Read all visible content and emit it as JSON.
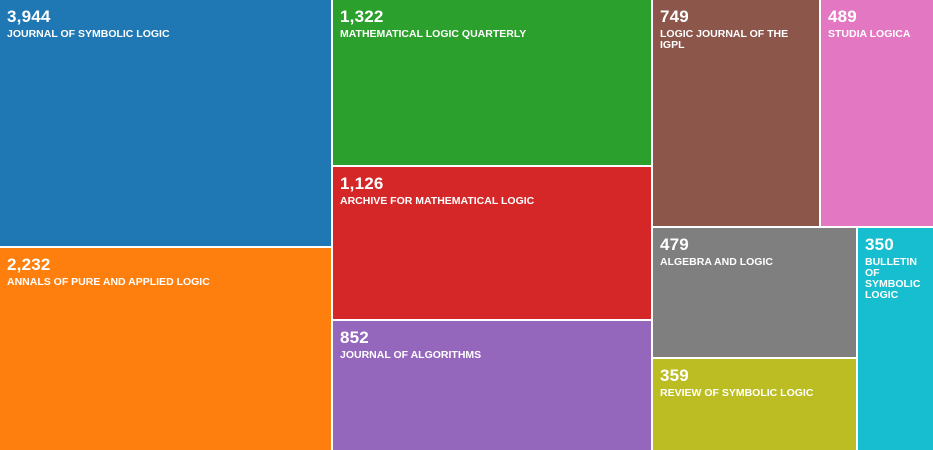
{
  "chart_data": {
    "type": "treemap",
    "items": [
      {
        "value": 3944,
        "value_label": "3,944",
        "label": "JOURNAL OF SYMBOLIC LOGIC",
        "color": "#1f77b4"
      },
      {
        "value": 2232,
        "value_label": "2,232",
        "label": "ANNALS OF PURE AND APPLIED LOGIC",
        "color": "#ff7f0e"
      },
      {
        "value": 1322,
        "value_label": "1,322",
        "label": "MATHEMATICAL LOGIC QUARTERLY",
        "color": "#2ca02c"
      },
      {
        "value": 1126,
        "value_label": "1,126",
        "label": "ARCHIVE FOR MATHEMATICAL LOGIC",
        "color": "#d62728"
      },
      {
        "value": 852,
        "value_label": "852",
        "label": "JOURNAL OF ALGORITHMS",
        "color": "#9467bd"
      },
      {
        "value": 749,
        "value_label": "749",
        "label": "LOGIC JOURNAL OF THE IGPL",
        "color": "#8c564b"
      },
      {
        "value": 489,
        "value_label": "489",
        "label": "STUDIA LOGICA",
        "color": "#e377c2"
      },
      {
        "value": 479,
        "value_label": "479",
        "label": "ALGEBRA AND LOGIC",
        "color": "#7f7f7f"
      },
      {
        "value": 359,
        "value_label": "359",
        "label": "REVIEW OF SYMBOLIC LOGIC",
        "color": "#bcbd22"
      },
      {
        "value": 350,
        "value_label": "350",
        "label": "BULLETIN OF SYMBOLIC LOGIC",
        "color": "#17becf"
      }
    ]
  }
}
